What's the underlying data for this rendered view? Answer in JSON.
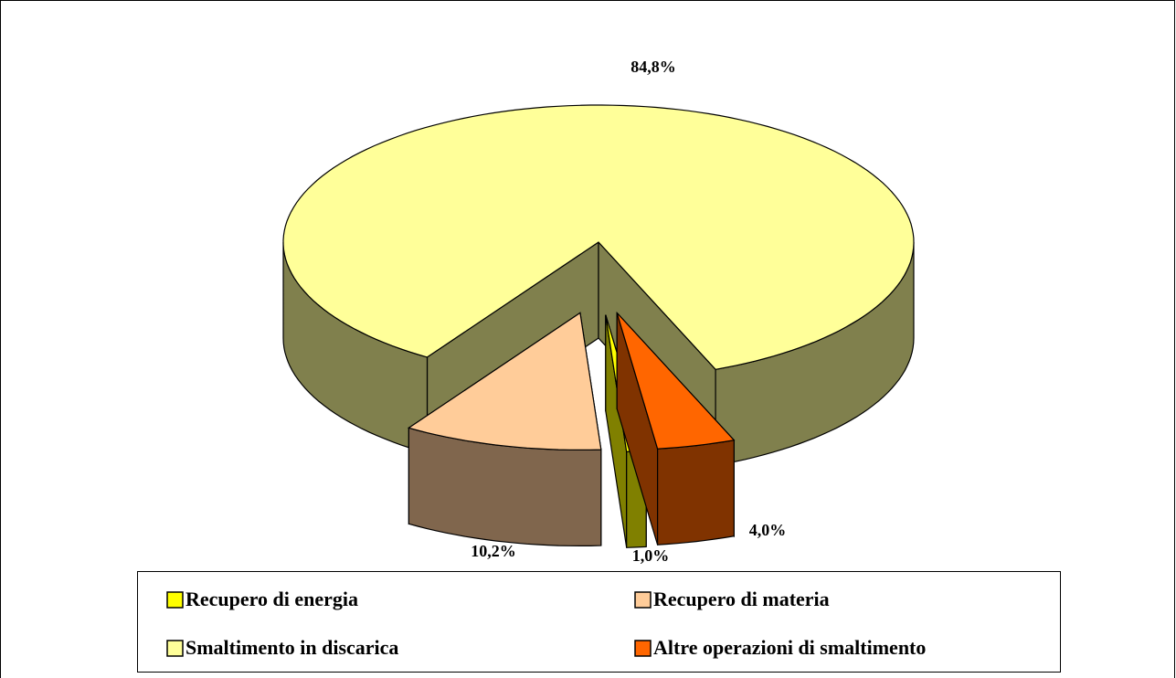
{
  "chart_data": {
    "type": "pie",
    "pie_3d": true,
    "categories": [
      "Recupero di energia",
      "Recupero di materia",
      "Smaltimento in discarica",
      "Altre operazioni di smaltimento"
    ],
    "values": [
      1.0,
      10.2,
      84.8,
      4.0
    ],
    "value_labels": [
      "1,0%",
      "10,2%",
      "84,8%",
      "4,0%"
    ],
    "colors": [
      "#ffff00",
      "#ffcc99",
      "#ffff99",
      "#ff6600"
    ],
    "legend": "bottom"
  }
}
